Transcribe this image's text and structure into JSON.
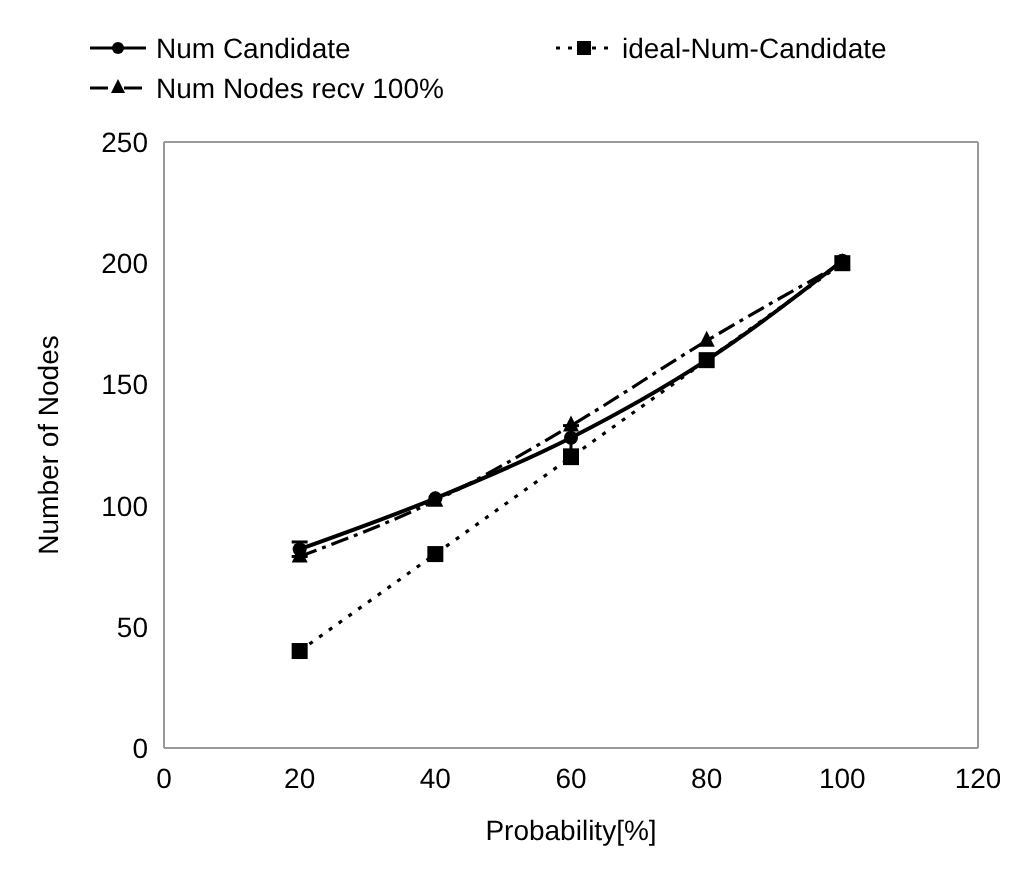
{
  "chart_data": {
    "type": "line",
    "xlabel": "Probability[%]",
    "ylabel": "Number of Nodes",
    "x": [
      20,
      40,
      60,
      80,
      100
    ],
    "series": [
      {
        "name": "Num Candidate",
        "color": "#000000",
        "values": [
          82,
          103,
          128,
          160,
          201
        ],
        "errors": [
          3,
          null,
          5,
          null,
          null
        ],
        "marker": "circle",
        "line_style": "solid"
      },
      {
        "name": "ideal-Num-Candidate",
        "color": "#000000",
        "values": [
          40,
          80,
          120,
          160,
          200
        ],
        "marker": "square",
        "line_style": "dotted"
      },
      {
        "name": "Num Nodes recv 100%",
        "color": "#000000",
        "values": [
          79,
          102,
          133,
          168,
          200
        ],
        "marker": "triangle",
        "line_style": "dashed"
      }
    ],
    "xlim": [
      0,
      120
    ],
    "xticks": [
      0,
      20,
      40,
      60,
      80,
      100,
      120
    ],
    "ylim": [
      0,
      250
    ],
    "yticks": [
      0,
      50,
      100,
      150,
      200,
      250
    ],
    "grid": false,
    "legend": "top"
  }
}
